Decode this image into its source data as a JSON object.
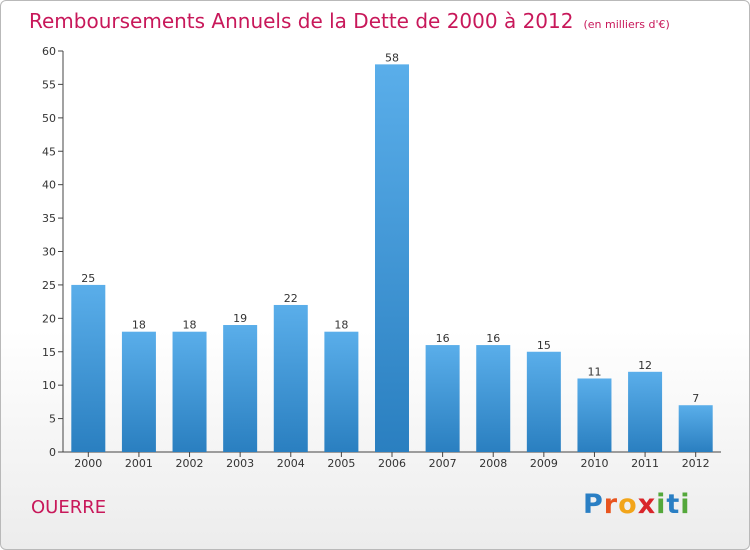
{
  "header": {
    "title": "Remboursements Annuels de la Dette de 2000 à 2012",
    "subtitle": "(en milliers d'€)"
  },
  "footer": {
    "commune": "OUERRE",
    "logo_text": "Proxiti"
  },
  "colors": {
    "bar_top": "#5aaeea",
    "bar_bottom": "#2a7fc0",
    "title": "#c8185a"
  },
  "chart_data": {
    "type": "bar",
    "title": "Remboursements Annuels de la Dette de 2000 à 2012",
    "subtitle": "(en milliers d'€)",
    "xlabel": "",
    "ylabel": "",
    "categories": [
      "2000",
      "2001",
      "2002",
      "2003",
      "2004",
      "2005",
      "2006",
      "2007",
      "2008",
      "2009",
      "2010",
      "2011",
      "2012"
    ],
    "values": [
      25,
      18,
      18,
      19,
      22,
      18,
      58,
      16,
      16,
      15,
      11,
      12,
      7
    ],
    "ylim": [
      0,
      60
    ],
    "yticks": [
      0,
      5,
      10,
      15,
      20,
      25,
      30,
      35,
      40,
      45,
      50,
      55,
      60
    ],
    "grid": false,
    "legend": "none"
  }
}
